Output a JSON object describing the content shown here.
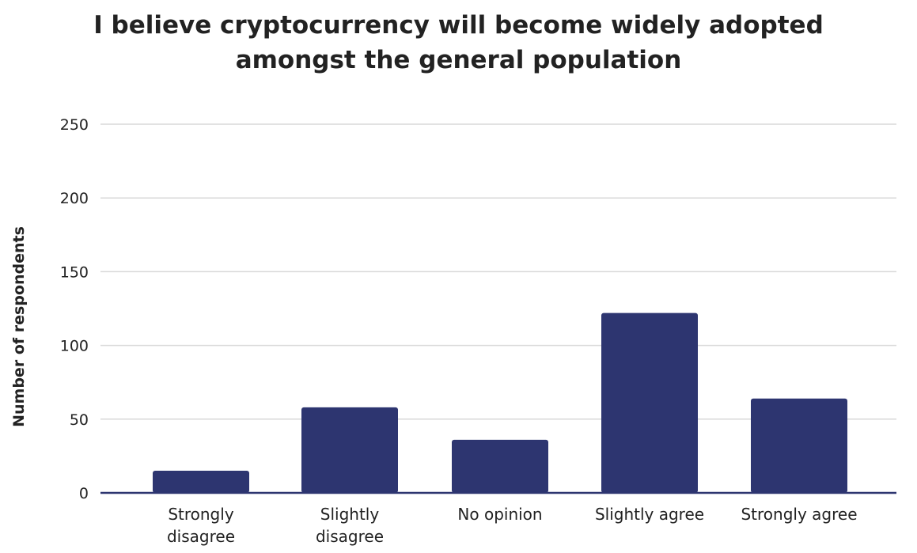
{
  "chart_data": {
    "type": "bar",
    "title_lines": [
      "I believe cryptocurrency will become widely adopted",
      "amongst the general population"
    ],
    "xlabel": "",
    "ylabel": "Number of respondents",
    "categories": [
      [
        "Strongly",
        "disagree"
      ],
      [
        "Slightly",
        "disagree"
      ],
      [
        "No opinion"
      ],
      [
        "Slightly agree"
      ],
      [
        "Strongly agree"
      ]
    ],
    "values": [
      15,
      58,
      36,
      122,
      64
    ],
    "ylim": [
      0,
      250
    ],
    "yticks": [
      0,
      50,
      100,
      150,
      200,
      250
    ],
    "grid": true,
    "legend": "none",
    "colors": {
      "bar": "#2d3570",
      "grid": "#d9d9d9",
      "axis": "#2d3570",
      "text": "#222222"
    }
  }
}
